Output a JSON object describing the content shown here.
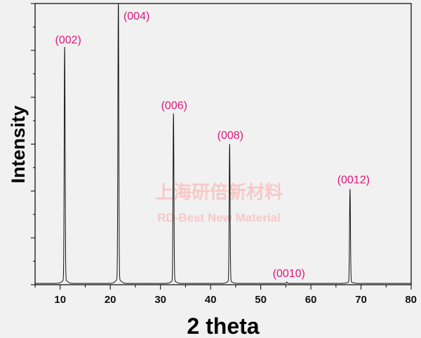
{
  "chart_data": {
    "type": "line",
    "xlabel": "2 theta",
    "ylabel": "Intensity",
    "xlim": [
      5,
      80
    ],
    "ylim": [
      0,
      105
    ],
    "xticks": [
      10,
      20,
      30,
      40,
      50,
      60,
      70,
      80
    ],
    "y_tick_labels_shown": false,
    "grid": false,
    "baseline": 0.5,
    "peaks": [
      {
        "label": "(002)",
        "x": 10.9,
        "y": 87.5
      },
      {
        "label": "(004)",
        "x": 21.6,
        "y": 105
      },
      {
        "label": "(006)",
        "x": 32.6,
        "y": 63.0
      },
      {
        "label": "(008)",
        "x": 43.8,
        "y": 51.8
      },
      {
        "label": "(0010)",
        "x": 55.2,
        "y": 1.0
      },
      {
        "label": "(0012)",
        "x": 67.8,
        "y": 35.2
      }
    ],
    "colors": {
      "line": "#111111",
      "peak_labels": "#e0157a",
      "background": "#f1f1f1"
    }
  },
  "watermark": {
    "cn": "上海研倍新材料",
    "en": "RD-Best New Material",
    "color": "#f7c9c9"
  }
}
